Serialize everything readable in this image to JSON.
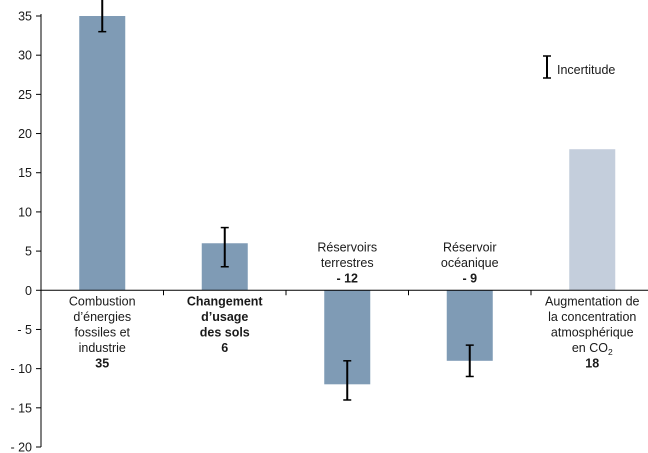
{
  "chart_data": {
    "type": "bar",
    "ylim": [
      -20,
      35
    ],
    "yticks": [
      {
        "value": 35,
        "label": "35"
      },
      {
        "value": 30,
        "label": "30"
      },
      {
        "value": 25,
        "label": "25"
      },
      {
        "value": 20,
        "label": "20"
      },
      {
        "value": 15,
        "label": "15"
      },
      {
        "value": 10,
        "label": "10"
      },
      {
        "value": 5,
        "label": "5"
      },
      {
        "value": 0,
        "label": "0"
      },
      {
        "value": -5,
        "label": "- 5"
      },
      {
        "value": -10,
        "label": "- 10"
      },
      {
        "value": -15,
        "label": "- 15"
      },
      {
        "value": -20,
        "label": "- 20"
      }
    ],
    "categories": [
      {
        "label_lines": [
          "Combustion",
          "d’énergies",
          "fossiles et",
          "industrie"
        ],
        "value_label": "35",
        "value": 35,
        "uncertainty": [
          33,
          37.5
        ],
        "color": "#7f9bb5",
        "bold_label": false
      },
      {
        "label_lines": [
          "Changement",
          "d’usage",
          "des sols"
        ],
        "value_label": "6",
        "value": 6,
        "uncertainty": [
          3,
          8
        ],
        "color": "#7f9bb5",
        "bold_label": true
      },
      {
        "label_lines": [
          "Réservoirs",
          "terrestres"
        ],
        "value_label": "- 12",
        "value": -12,
        "uncertainty": [
          -14,
          -9
        ],
        "color": "#7f9bb5",
        "bold_label": false
      },
      {
        "label_lines": [
          "Réservoir",
          "océanique"
        ],
        "value_label": "- 9",
        "value": -9,
        "uncertainty": [
          -11,
          -7
        ],
        "color": "#7f9bb5",
        "bold_label": false
      },
      {
        "label_lines": [
          "Augmentation de",
          "la concentration",
          "atmosphérique",
          "en CO",
          "2"
        ],
        "value_label": "18",
        "value": 18,
        "uncertainty": null,
        "color": "#c4cedc",
        "bold_label": false
      }
    ],
    "legend": {
      "label": "Incertitude",
      "position": "top-right"
    },
    "grid": false
  }
}
